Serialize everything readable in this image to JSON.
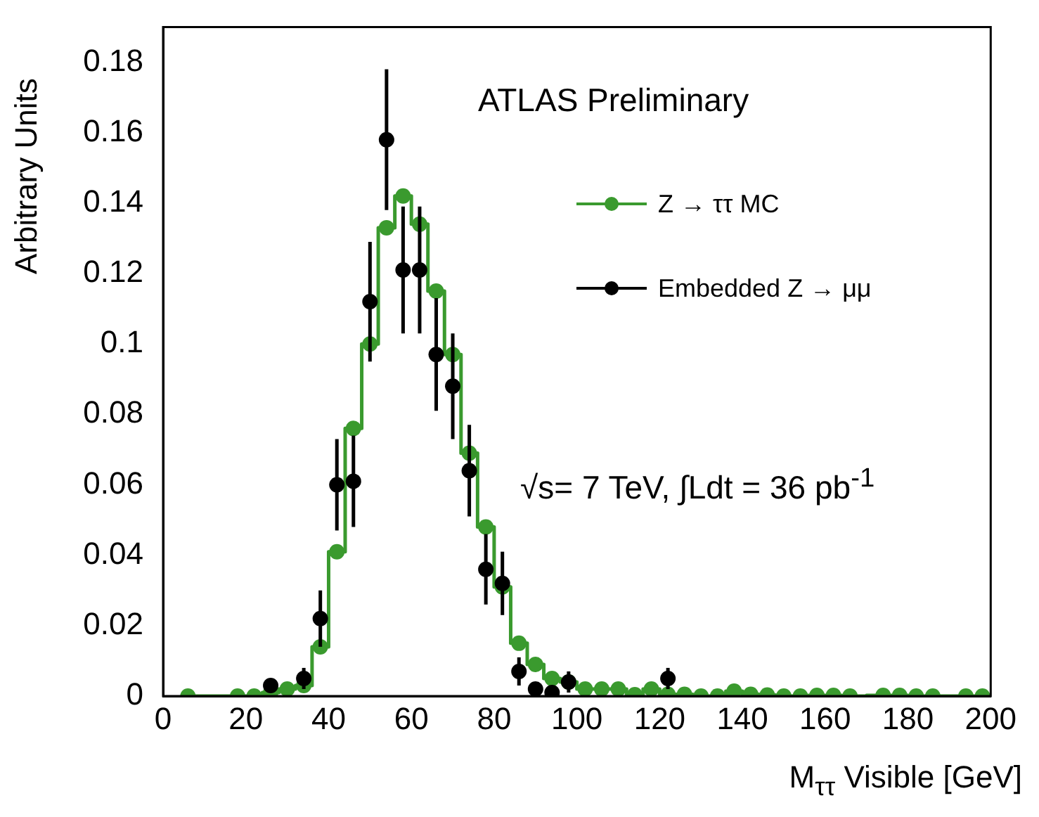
{
  "chart_data": {
    "type": "step",
    "xlabel": "M$_{ττ}$ Visible [GeV]",
    "ylabel": "Arbitrary Units",
    "annotations": [
      "ATLAS Preliminary",
      "√s= 7 TeV, ∫Ldt = 36 pb$^{-1}$"
    ],
    "x": [
      6,
      10,
      14,
      18,
      22,
      26,
      30,
      34,
      38,
      42,
      46,
      50,
      54,
      58,
      62,
      66,
      70,
      74,
      78,
      82,
      86,
      90,
      94,
      98,
      102,
      106,
      110,
      114,
      118,
      122,
      126,
      130,
      134,
      138,
      142,
      146,
      150,
      154,
      158,
      162,
      166,
      170,
      174,
      178,
      182,
      186,
      190,
      194,
      198
    ],
    "series": [
      {
        "name": "Z → ττ MC",
        "type": "step",
        "color": "#3a9a2e",
        "values": [
          0,
          null,
          null,
          0,
          0,
          0.001,
          0.002,
          0.003,
          0.014,
          0.041,
          0.076,
          0.1,
          0.133,
          0.142,
          0.134,
          0.115,
          0.097,
          0.069,
          0.048,
          0.031,
          0.015,
          0.009,
          0.005,
          0.004,
          0.002,
          0.002,
          0.002,
          0.0004,
          0.002,
          0.0005,
          0.0005,
          0,
          0,
          0.0014,
          0.0005,
          0.0003,
          0,
          0,
          0.0002,
          0.0002,
          0,
          null,
          0.0002,
          0.0002,
          0,
          0,
          null,
          0,
          0
        ]
      },
      {
        "name": "Embedded Z → μμ",
        "type": "scatter",
        "color": "#000000",
        "values": [
          null,
          null,
          null,
          null,
          null,
          0.003,
          null,
          0.005,
          0.022,
          0.06,
          0.061,
          0.112,
          0.158,
          0.121,
          0.121,
          0.097,
          0.088,
          0.064,
          0.036,
          0.032,
          0.007,
          0.002,
          0.001,
          0.004,
          null,
          null,
          null,
          null,
          null,
          0.005,
          null,
          null,
          null,
          null,
          null,
          null,
          null,
          null,
          null,
          null,
          null,
          null,
          null,
          null,
          null,
          null,
          null,
          null,
          null
        ],
        "errors": [
          null,
          null,
          null,
          null,
          null,
          0.002,
          null,
          0.003,
          0.008,
          0.013,
          0.013,
          0.017,
          0.02,
          0.018,
          0.018,
          0.016,
          0.015,
          0.013,
          0.01,
          0.009,
          0.004,
          null,
          null,
          0.003,
          null,
          null,
          null,
          null,
          null,
          0.003,
          null,
          null,
          null,
          null,
          null,
          null,
          null,
          null,
          null,
          null,
          null,
          null,
          null,
          null,
          null,
          null,
          null,
          null,
          null
        ]
      }
    ],
    "xlim": [
      0,
      200
    ],
    "xticks": [
      0,
      20,
      40,
      60,
      80,
      100,
      120,
      140,
      160,
      180,
      200
    ],
    "ylim": [
      0,
      0.19
    ],
    "yticks": [
      0,
      0.02,
      0.04,
      0.06,
      0.08,
      0.1,
      0.12,
      0.14,
      0.16,
      0.18
    ],
    "grid": false,
    "legend": "top right",
    "marker": "circle"
  }
}
